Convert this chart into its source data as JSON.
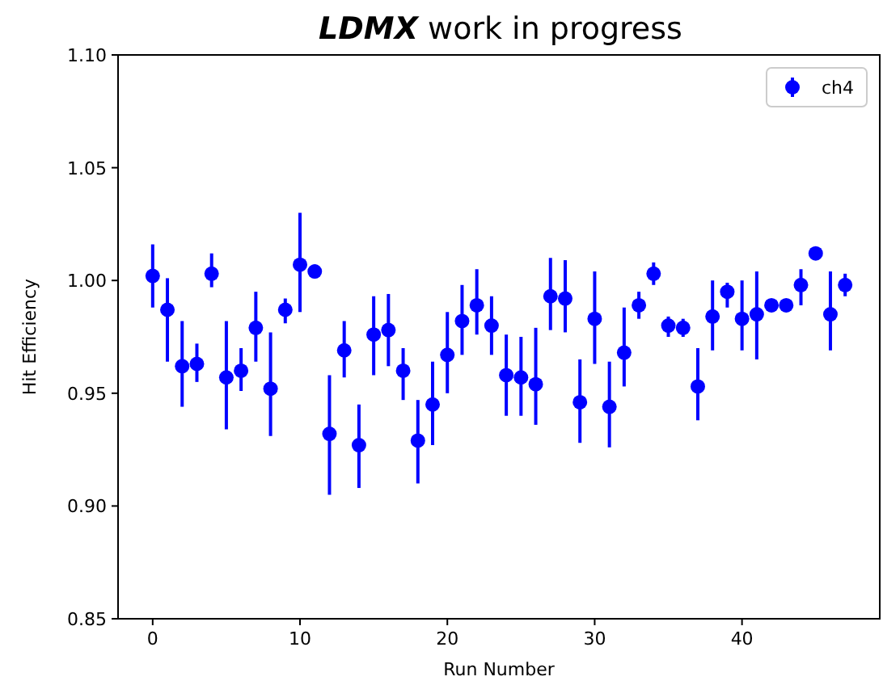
{
  "chart_data": {
    "type": "scatter",
    "title": "LDMX work in progress",
    "xlabel": "Run Number",
    "ylabel": "Hit Efficiency",
    "x": [
      0,
      1,
      2,
      3,
      4,
      5,
      6,
      7,
      8,
      9,
      10,
      11,
      12,
      13,
      14,
      15,
      16,
      17,
      18,
      19,
      20,
      21,
      22,
      23,
      24,
      25,
      26,
      27,
      28,
      29,
      30,
      31,
      32,
      33,
      34,
      35,
      36,
      37,
      38,
      39,
      40,
      41,
      42,
      43,
      44,
      45,
      46,
      47
    ],
    "series": [
      {
        "name": "ch4",
        "color": "#0000ff",
        "values": [
          1.002,
          0.987,
          0.962,
          0.963,
          1.003,
          0.957,
          0.96,
          0.979,
          0.952,
          0.987,
          1.007,
          1.004,
          0.932,
          0.969,
          0.927,
          0.976,
          0.978,
          0.96,
          0.929,
          0.945,
          0.967,
          0.982,
          0.989,
          0.98,
          0.958,
          0.957,
          0.954,
          0.993,
          0.992,
          0.946,
          0.983,
          0.944,
          0.968,
          0.989,
          1.003,
          0.98,
          0.979,
          0.953,
          0.984,
          0.995,
          0.983,
          0.985,
          0.989,
          0.989,
          0.998,
          1.012,
          0.985,
          0.998
        ],
        "errors": [
          [
            0.988,
            1.016
          ],
          [
            0.964,
            1.001
          ],
          [
            0.944,
            0.982
          ],
          [
            0.955,
            0.972
          ],
          [
            0.997,
            1.012
          ],
          [
            0.934,
            0.982
          ],
          [
            0.951,
            0.97
          ],
          [
            0.964,
            0.995
          ],
          [
            0.931,
            0.977
          ],
          [
            0.981,
            0.992
          ],
          [
            0.986,
            1.03
          ],
          [
            1.001,
            1.007
          ],
          [
            0.905,
            0.958
          ],
          [
            0.957,
            0.982
          ],
          [
            0.908,
            0.945
          ],
          [
            0.958,
            0.993
          ],
          [
            0.962,
            0.994
          ],
          [
            0.947,
            0.97
          ],
          [
            0.91,
            0.947
          ],
          [
            0.927,
            0.964
          ],
          [
            0.95,
            0.986
          ],
          [
            0.967,
            0.998
          ],
          [
            0.976,
            1.005
          ],
          [
            0.967,
            0.993
          ],
          [
            0.94,
            0.976
          ],
          [
            0.94,
            0.975
          ],
          [
            0.936,
            0.979
          ],
          [
            0.978,
            1.01
          ],
          [
            0.977,
            1.009
          ],
          [
            0.928,
            0.965
          ],
          [
            0.963,
            1.004
          ],
          [
            0.926,
            0.964
          ],
          [
            0.953,
            0.988
          ],
          [
            0.983,
            0.995
          ],
          [
            0.998,
            1.008
          ],
          [
            0.975,
            0.984
          ],
          [
            0.975,
            0.983
          ],
          [
            0.938,
            0.97
          ],
          [
            0.969,
            1.0
          ],
          [
            0.988,
            0.999
          ],
          [
            0.969,
            1.0
          ],
          [
            0.965,
            1.004
          ],
          [
            0.987,
            0.991
          ],
          [
            0.987,
            0.991
          ],
          [
            0.989,
            1.005
          ],
          null,
          [
            0.969,
            1.004
          ],
          [
            0.993,
            1.003
          ]
        ]
      }
    ],
    "xlim": [
      -2.35,
      49.35
    ],
    "ylim": [
      0.85,
      1.1
    ],
    "xticks": [
      0,
      10,
      20,
      30,
      40
    ],
    "yticks": [
      {
        "value": 0.85,
        "label": "0.85"
      },
      {
        "value": 0.9,
        "label": "0.90"
      },
      {
        "value": 0.95,
        "label": "0.95"
      },
      {
        "value": 1.0,
        "label": "1.00"
      },
      {
        "value": 1.05,
        "label": "1.05"
      },
      {
        "value": 1.1,
        "label": "1.10"
      }
    ],
    "marker": "circle",
    "legend": "top right",
    "grid": false
  }
}
